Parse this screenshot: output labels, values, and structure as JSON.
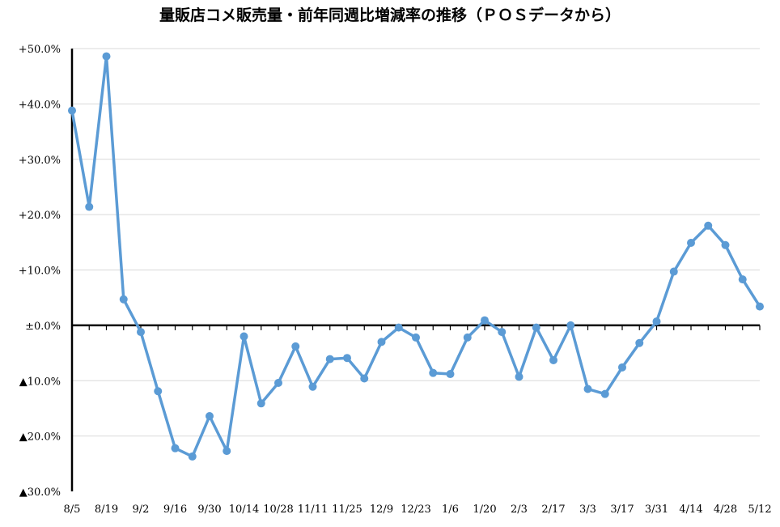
{
  "chart_data": {
    "type": "line",
    "title": "量販店コメ販売量・前年同週比増減率の推移（ＰＯＳデータから）",
    "xlabel": "",
    "ylabel": "",
    "ylim": [
      -30,
      50
    ],
    "grid": true,
    "legend": "none",
    "line_color": "#5B9BD5",
    "yticks": [
      50,
      40,
      30,
      20,
      10,
      0,
      -10,
      -20,
      -30
    ],
    "ytick_labels": [
      "+50.0%",
      "+40.0%",
      "+30.0%",
      "+20.0%",
      "+10.0%",
      "±0.0%",
      "▲10.0%",
      "▲20.0%",
      "▲30.0%"
    ],
    "xtick_labels": [
      "8/5",
      "8/19",
      "9/2",
      "9/16",
      "9/30",
      "10/14",
      "10/28",
      "11/11",
      "11/25",
      "12/9",
      "12/23",
      "1/6",
      "1/20",
      "2/3",
      "2/17",
      "3/3",
      "3/17",
      "3/31",
      "4/14",
      "4/28",
      "5/12"
    ],
    "series": [
      {
        "values": [
          38.8,
          21.4,
          48.6,
          4.7,
          -1.2,
          -11.9,
          -22.2,
          -23.7,
          -16.4,
          -22.7,
          -2.0,
          -14.1,
          -10.4,
          -3.8,
          -11.1,
          -6.1,
          -5.9,
          -9.6,
          -3.0,
          -0.4,
          -2.2,
          -8.6,
          -8.8,
          -2.2,
          0.9,
          -1.2,
          -9.3,
          -0.4,
          -6.3,
          0.0,
          -11.5,
          -12.4,
          -7.6,
          -3.2,
          0.7,
          9.7,
          14.9,
          18.0,
          14.5,
          8.3,
          3.4
        ]
      }
    ]
  }
}
